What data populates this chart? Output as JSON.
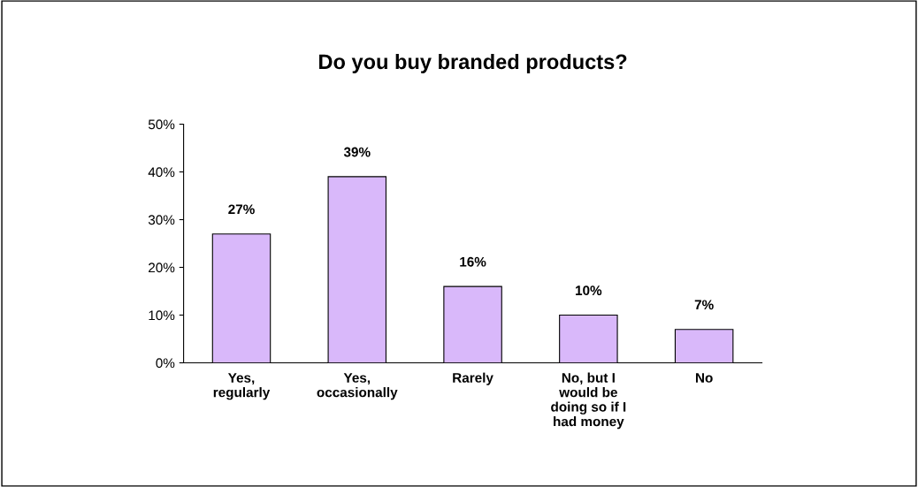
{
  "chart_data": {
    "type": "bar",
    "title": "Do you buy branded products?",
    "categories": [
      "Yes,\nregularly",
      "Yes,\noccasionally",
      "Rarely",
      "No, but I\nwould be\ndoing so if I\nhad money",
      "No"
    ],
    "values": [
      27,
      39,
      16,
      10,
      7
    ],
    "value_labels": [
      "27%",
      "39%",
      "16%",
      "10%",
      "7%"
    ],
    "color": "#d9b8fa",
    "ylim": [
      0,
      50
    ],
    "yticks": [
      {
        "value": 0,
        "label": "0%"
      },
      {
        "value": 10,
        "label": "10%"
      },
      {
        "value": 20,
        "label": "20%"
      },
      {
        "value": 30,
        "label": "30%"
      },
      {
        "value": 40,
        "label": "40%"
      },
      {
        "value": 50,
        "label": "50%"
      }
    ],
    "grid": false,
    "legend": false
  }
}
